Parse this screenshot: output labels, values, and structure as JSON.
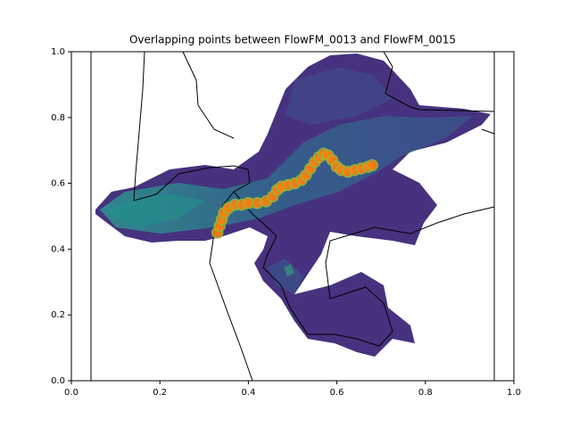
{
  "chart_data": {
    "type": "scatter",
    "title": "Overlapping points between FlowFM_0013 and FlowFM_0015",
    "x": [
      0.33,
      0.335,
      0.34,
      0.345,
      0.355,
      0.37,
      0.385,
      0.4,
      0.42,
      0.44,
      0.455,
      0.465,
      0.475,
      0.49,
      0.505,
      0.52,
      0.53,
      0.54,
      0.55,
      0.56,
      0.57,
      0.58,
      0.59,
      0.6,
      0.61,
      0.625,
      0.64,
      0.655,
      0.67,
      0.68
    ],
    "values": [
      0.45,
      0.47,
      0.49,
      0.51,
      0.525,
      0.535,
      0.535,
      0.54,
      0.54,
      0.545,
      0.56,
      0.58,
      0.59,
      0.595,
      0.6,
      0.61,
      0.625,
      0.645,
      0.665,
      0.68,
      0.69,
      0.685,
      0.67,
      0.65,
      0.64,
      0.635,
      0.64,
      0.645,
      0.65,
      0.655
    ],
    "color": "#ff7f0e",
    "edge_color": "#8fbc3a",
    "xlim": [
      0,
      1
    ],
    "ylim": [
      0,
      1
    ],
    "xticks": [
      {
        "value": 0,
        "label": "0.0"
      },
      0.2,
      0.4,
      0.6,
      0.8,
      {
        "value": 1,
        "label": "1.0"
      }
    ],
    "yticks": [
      {
        "value": 0,
        "label": "0.0"
      },
      0.2,
      0.4,
      0.6,
      0.8,
      {
        "value": 1,
        "label": "1.0"
      }
    ]
  }
}
